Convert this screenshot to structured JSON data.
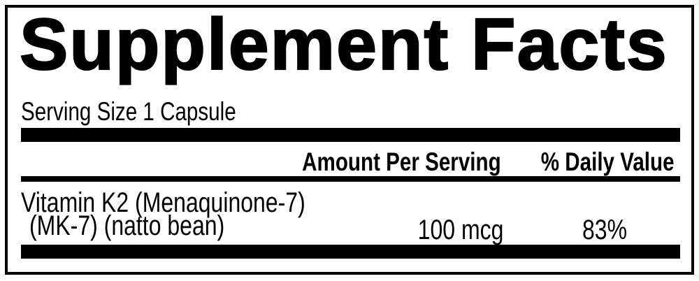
{
  "title": "Supplement Facts",
  "serving": {
    "text": "Serving Size 1 Capsule"
  },
  "header": {
    "amount": "Amount Per Serving",
    "daily_value": "% Daily Value"
  },
  "rows": [
    {
      "name_line1": "Vitamin K2 (Menaquinone-7)",
      "name_line2": "(MK-7) (natto bean)",
      "amount": "100 mcg",
      "daily_value": "83%"
    }
  ],
  "colors": {
    "ink": "#000000",
    "background": "#ffffff"
  }
}
